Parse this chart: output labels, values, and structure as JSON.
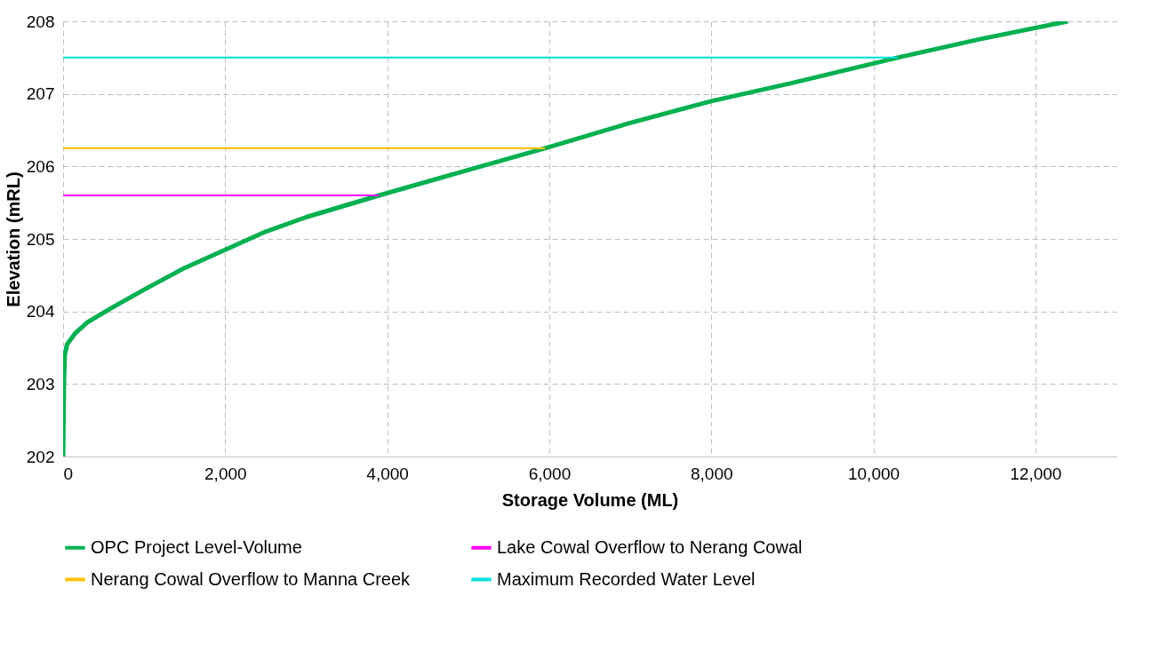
{
  "chart_data": {
    "type": "line",
    "xlabel": "Storage Volume (ML)",
    "ylabel": "Elevation (mRL)",
    "xlim": [
      0,
      13000
    ],
    "xticks": [
      {
        "value": 0,
        "label": "0"
      },
      {
        "value": 2000,
        "label": "2,000"
      },
      {
        "value": 4000,
        "label": "4,000"
      },
      {
        "value": 6000,
        "label": "6,000"
      },
      {
        "value": 8000,
        "label": "8,000"
      },
      {
        "value": 10000,
        "label": "10,000"
      },
      {
        "value": 12000,
        "label": "12,000"
      }
    ],
    "ylim": [
      202,
      208
    ],
    "yticks": [
      202,
      203,
      204,
      205,
      206,
      207,
      208
    ],
    "grid": true,
    "legend": "bottom",
    "marker": "none",
    "line_style": "solid",
    "series": [
      {
        "name": "OPC Project Level-Volume",
        "color": "#00b050",
        "x": [
          0,
          10,
          20,
          50,
          150,
          300,
          600,
          1000,
          1500,
          2000,
          2500,
          3000,
          3900,
          5000,
          5950,
          7000,
          8000,
          9000,
          10300,
          11300,
          12400
        ],
        "values": [
          202,
          203,
          203.4,
          203.55,
          203.7,
          203.85,
          204.05,
          204.3,
          204.6,
          204.85,
          205.1,
          205.3,
          205.6,
          205.95,
          206.25,
          206.6,
          206.9,
          207.15,
          207.5,
          207.75,
          208
        ]
      },
      {
        "name": "Lake Cowal Overflow to Nerang Cowal",
        "color": "#ff00ff",
        "x": [
          0,
          3900
        ],
        "values": [
          205.6,
          205.6
        ]
      },
      {
        "name": "Nerang Cowal Overflow to Manna Creek",
        "color": "#ffc000",
        "x": [
          0,
          5950
        ],
        "values": [
          206.25,
          206.25
        ]
      },
      {
        "name": "Maximum Recorded Water Level",
        "color": "#00e0e0",
        "x": [
          0,
          10300
        ],
        "values": [
          207.5,
          207.5
        ]
      }
    ]
  }
}
